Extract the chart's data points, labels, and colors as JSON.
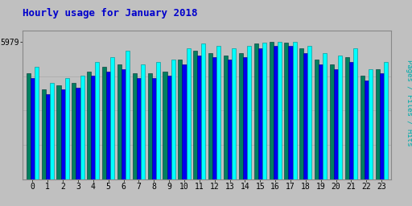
{
  "title": "Hourly usage for January 2018",
  "ylabel": "Pages / Files / Hits",
  "ymax": 5979,
  "ytick_label": "5979",
  "hours": [
    0,
    1,
    2,
    3,
    4,
    5,
    6,
    7,
    8,
    9,
    10,
    11,
    12,
    13,
    14,
    15,
    16,
    17,
    18,
    19,
    20,
    21,
    22,
    23
  ],
  "pages": [
    4600,
    3900,
    4100,
    4200,
    4700,
    4900,
    5000,
    4600,
    4600,
    4700,
    5200,
    5600,
    5500,
    5400,
    5500,
    5900,
    5970,
    5960,
    5700,
    5200,
    5000,
    5300,
    4500,
    4800
  ],
  "files": [
    4400,
    3700,
    3900,
    4000,
    4500,
    4700,
    4800,
    4400,
    4400,
    4500,
    5000,
    5400,
    5300,
    5200,
    5300,
    5700,
    5800,
    5800,
    5500,
    5000,
    4800,
    5100,
    4300,
    4600
  ],
  "hits": [
    4900,
    4200,
    4400,
    4500,
    5100,
    5300,
    5600,
    5000,
    5100,
    5200,
    5700,
    5900,
    5800,
    5700,
    5800,
    5950,
    5970,
    5970,
    5800,
    5500,
    5400,
    5700,
    4800,
    5100
  ],
  "color_pages": "#008060",
  "color_files": "#0000ee",
  "color_hits": "#00ffff",
  "color_bg": "#c0c0c0",
  "color_plot_bg": "#c0c0c0",
  "color_title": "#0000cc",
  "color_ylabel": "#00aaaa",
  "color_border": "#000000",
  "bar_width": 0.27,
  "title_fontsize": 9,
  "tick_fontsize": 7
}
